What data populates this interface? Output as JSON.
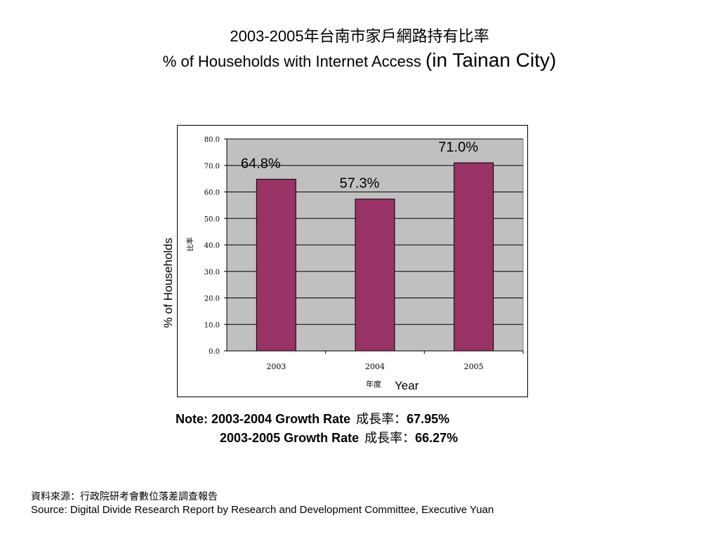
{
  "title": {
    "line1": "2003-2005年台南市家戶網路持有比率",
    "line2_main": "% of Households with Internet Access ",
    "line2_big": "(in Tainan City)"
  },
  "chart_data": {
    "type": "bar",
    "categories": [
      "2003",
      "2004",
      "2005"
    ],
    "values": [
      64.8,
      57.3,
      71.0
    ],
    "data_labels": [
      "64.8%",
      "57.3%",
      "71.0%"
    ],
    "ylim": [
      0,
      80
    ],
    "yticks": [
      "0.0",
      "10.0",
      "20.0",
      "30.0",
      "40.0",
      "50.0",
      "60.0",
      "70.0",
      "80.0"
    ],
    "ylabel_en": "%  of Households",
    "ylabel_zh": "比率",
    "xlabel_zh": "年度",
    "xlabel_en": "Year",
    "grid": true,
    "plot_bg_color": "#c0c0c0",
    "bar_color": "#993366"
  },
  "note": {
    "row1_label": "Note: 2003-2004 Growth Rate",
    "row1_zh": "成長率：",
    "row1_value": "67.95%",
    "row2_label": "2003-2005 Growth Rate",
    "row2_zh": "成長率：",
    "row2_value": "66.27%"
  },
  "source": {
    "zh": "資料來源：行政院研考會數位落差調查報告",
    "en": "Source: Digital Divide Research Report by Research and Development Committee, Executive Yuan"
  }
}
